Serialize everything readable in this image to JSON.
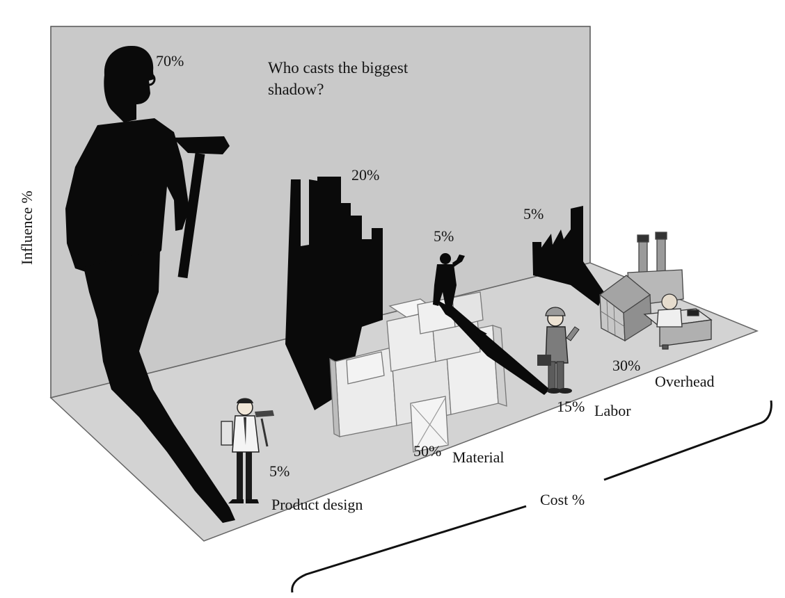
{
  "title": "Who casts the biggest shadow?",
  "influence_axis_label": "Influence %",
  "cost_axis_label": "Cost %",
  "colors": {
    "wall": "#c9c9c9",
    "floor": "#d2d2d2",
    "shadow": "#0a0a0a",
    "box": "#e9e9e9",
    "ink": "#111111"
  },
  "items": [
    {
      "name": "Product design",
      "cost_pct": "5%",
      "influence_pct": "70%",
      "icon": "engineer-icon"
    },
    {
      "name": "Material",
      "cost_pct": "50%",
      "influence_pct": "20%",
      "icon": "boxes-icon"
    },
    {
      "name": "Labor",
      "cost_pct": "15%",
      "influence_pct": "5%",
      "icon": "worker-icon"
    },
    {
      "name": "Overhead",
      "cost_pct": "30%",
      "influence_pct": "5%",
      "icon": "factory-office-icon"
    }
  ]
}
